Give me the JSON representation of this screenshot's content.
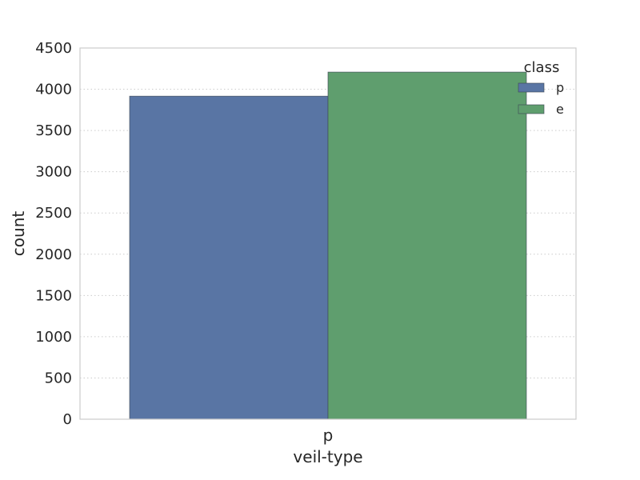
{
  "chart_data": {
    "type": "bar",
    "categories": [
      "p"
    ],
    "series": [
      {
        "name": "p",
        "values": [
          3916
        ],
        "color": "#5975a4"
      },
      {
        "name": "e",
        "values": [
          4208
        ],
        "color": "#5f9e6e"
      }
    ],
    "xlabel": "veil-type",
    "ylabel": "count",
    "ylim": [
      0,
      4500
    ],
    "yticks": [
      "0",
      "500",
      "1000",
      "1500",
      "2000",
      "2500",
      "3000",
      "3500",
      "4000",
      "4500"
    ],
    "grid": true,
    "legend": {
      "title": "class",
      "placement": "top-right"
    }
  }
}
